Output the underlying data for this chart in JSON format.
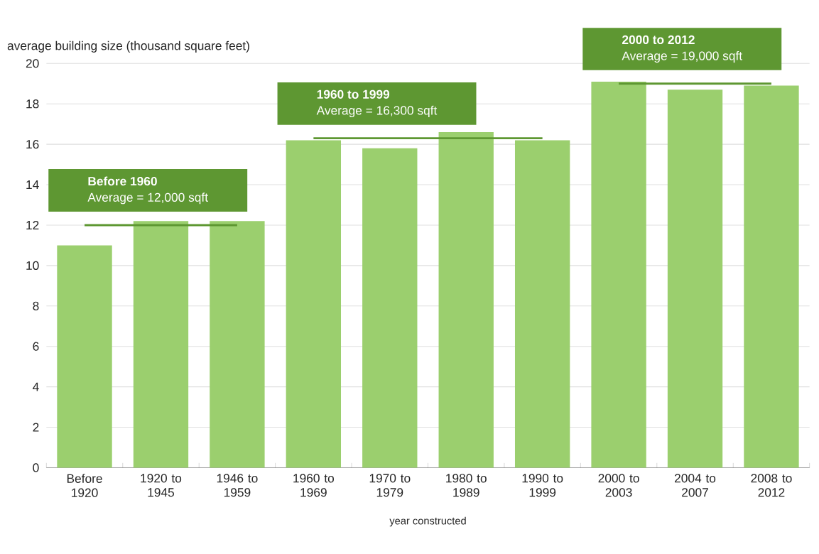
{
  "chart_data": {
    "type": "bar",
    "ylabel": "average building size (thousand square feet)",
    "xlabel": "year constructed",
    "categories": [
      "Before 1920",
      "1920 to 1945",
      "1946 to 1959",
      "1960 to 1969",
      "1970 to 1979",
      "1980 to 1989",
      "1990 to 1999",
      "2000 to 2003",
      "2004 to 2007",
      "2008 to 2012"
    ],
    "series": [
      {
        "color": "#9bcf6e",
        "values": [
          11.0,
          12.2,
          12.2,
          16.2,
          15.8,
          16.6,
          16.2,
          19.1,
          18.7,
          18.9
        ]
      },
      {
        "type": "line",
        "name": "Before 1960",
        "color": "#5e9732",
        "values": [
          12.0,
          12.0,
          12.0,
          null,
          null,
          null,
          null,
          null,
          null,
          null
        ]
      },
      {
        "type": "line",
        "name": "1960 to 1999",
        "color": "#5e9732",
        "values": [
          null,
          null,
          null,
          16.3,
          16.3,
          16.3,
          16.3,
          null,
          null,
          null
        ]
      },
      {
        "type": "line",
        "name": "2000 to 2012",
        "color": "#5e9732",
        "values": [
          null,
          null,
          null,
          null,
          null,
          null,
          null,
          19.0,
          19.0,
          19.0
        ]
      }
    ],
    "annotations": [
      "Average = 12,000 sqft",
      "Average = 16,300 sqft",
      "Average = 19,000 sqft"
    ],
    "ylim": [
      0,
      20
    ],
    "yticks": [
      0,
      2,
      4,
      6,
      8,
      10,
      12,
      14,
      16,
      18,
      20
    ],
    "grid": "y"
  }
}
